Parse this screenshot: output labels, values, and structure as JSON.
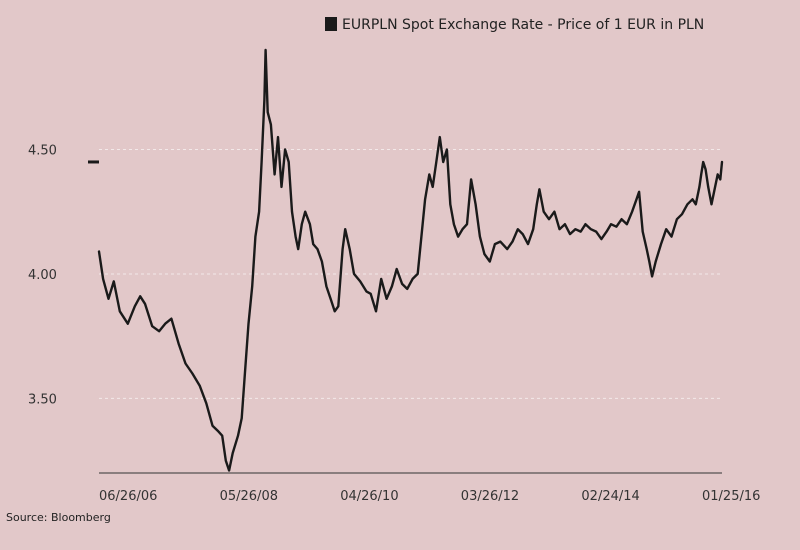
{
  "chart_data": {
    "type": "line",
    "title": "",
    "legend": {
      "label": "EURPLN Spot Exchange Rate - Price of 1 EUR in PLN",
      "placement": "top-right",
      "color": "#1a1a1a"
    },
    "source": "Source: Bloomberg",
    "xlabel": "",
    "ylabel": "",
    "grid": "horizontal dashed",
    "xlim": [
      "2006-06-26",
      "2016-05-20"
    ],
    "ylim": [
      3.2,
      4.9
    ],
    "x_tick_labels": [
      "06/26/06",
      "05/26/08",
      "04/26/10",
      "03/26/12",
      "02/24/14",
      "01/25/16"
    ],
    "x_tick_dates": [
      "2006-06-26",
      "2008-05-26",
      "2010-04-26",
      "2012-03-26",
      "2014-02-24",
      "2016-01-25"
    ],
    "y_ticks": [
      3.5,
      4.0,
      4.5
    ],
    "y_tick_labels": [
      "3.50",
      "4.00",
      "4.50"
    ],
    "last_value": 4.45,
    "series": [
      {
        "name": "EURPLN Spot Exchange Rate - Price of 1 EUR in PLN",
        "color": "#1a1a1a",
        "points": [
          [
            "2006-06-26",
            4.09
          ],
          [
            "2006-07-20",
            3.98
          ],
          [
            "2006-08-20",
            3.9
          ],
          [
            "2006-09-20",
            3.97
          ],
          [
            "2006-10-25",
            3.85
          ],
          [
            "2006-12-10",
            3.8
          ],
          [
            "2007-01-20",
            3.87
          ],
          [
            "2007-02-20",
            3.91
          ],
          [
            "2007-03-20",
            3.88
          ],
          [
            "2007-05-01",
            3.79
          ],
          [
            "2007-06-10",
            3.77
          ],
          [
            "2007-07-15",
            3.8
          ],
          [
            "2007-08-20",
            3.82
          ],
          [
            "2007-10-01",
            3.72
          ],
          [
            "2007-11-10",
            3.64
          ],
          [
            "2007-12-20",
            3.6
          ],
          [
            "2008-02-01",
            3.55
          ],
          [
            "2008-03-10",
            3.48
          ],
          [
            "2008-04-15",
            3.39
          ],
          [
            "2008-05-15",
            3.37
          ],
          [
            "2008-06-10",
            3.35
          ],
          [
            "2008-07-01",
            3.25
          ],
          [
            "2008-07-20",
            3.21
          ],
          [
            "2008-08-10",
            3.28
          ],
          [
            "2008-09-10",
            3.35
          ],
          [
            "2008-10-01",
            3.42
          ],
          [
            "2008-10-20",
            3.6
          ],
          [
            "2008-11-10",
            3.8
          ],
          [
            "2008-12-01",
            3.95
          ],
          [
            "2008-12-20",
            4.15
          ],
          [
            "2009-01-10",
            4.25
          ],
          [
            "2009-01-25",
            4.45
          ],
          [
            "2009-02-10",
            4.7
          ],
          [
            "2009-02-17",
            4.9
          ],
          [
            "2009-03-01",
            4.65
          ],
          [
            "2009-03-20",
            4.6
          ],
          [
            "2009-04-10",
            4.4
          ],
          [
            "2009-04-30",
            4.55
          ],
          [
            "2009-05-20",
            4.35
          ],
          [
            "2009-06-10",
            4.5
          ],
          [
            "2009-07-01",
            4.45
          ],
          [
            "2009-07-20",
            4.25
          ],
          [
            "2009-08-10",
            4.15
          ],
          [
            "2009-08-25",
            4.1
          ],
          [
            "2009-09-15",
            4.2
          ],
          [
            "2009-10-05",
            4.25
          ],
          [
            "2009-11-01",
            4.2
          ],
          [
            "2009-11-20",
            4.12
          ],
          [
            "2009-12-15",
            4.1
          ],
          [
            "2010-01-10",
            4.05
          ],
          [
            "2010-02-05",
            3.95
          ],
          [
            "2010-03-01",
            3.9
          ],
          [
            "2010-03-25",
            3.85
          ],
          [
            "2010-04-15",
            3.87
          ],
          [
            "2010-05-10",
            4.1
          ],
          [
            "2010-05-25",
            4.18
          ],
          [
            "2010-06-20",
            4.1
          ],
          [
            "2010-07-15",
            4.0
          ],
          [
            "2010-08-20",
            3.97
          ],
          [
            "2010-09-25",
            3.93
          ],
          [
            "2010-10-20",
            3.92
          ],
          [
            "2010-11-20",
            3.85
          ],
          [
            "2010-12-20",
            3.98
          ],
          [
            "2011-01-20",
            3.9
          ],
          [
            "2011-02-20",
            3.95
          ],
          [
            "2011-03-20",
            4.02
          ],
          [
            "2011-04-20",
            3.96
          ],
          [
            "2011-05-20",
            3.94
          ],
          [
            "2011-06-20",
            3.98
          ],
          [
            "2011-07-20",
            4.0
          ],
          [
            "2011-08-10",
            4.15
          ],
          [
            "2011-09-01",
            4.3
          ],
          [
            "2011-09-25",
            4.4
          ],
          [
            "2011-10-15",
            4.35
          ],
          [
            "2011-11-05",
            4.45
          ],
          [
            "2011-11-25",
            4.55
          ],
          [
            "2011-12-15",
            4.45
          ],
          [
            "2012-01-05",
            4.5
          ],
          [
            "2012-01-25",
            4.28
          ],
          [
            "2012-02-15",
            4.2
          ],
          [
            "2012-03-10",
            4.15
          ],
          [
            "2012-04-05",
            4.18
          ],
          [
            "2012-05-01",
            4.2
          ],
          [
            "2012-05-25",
            4.38
          ],
          [
            "2012-06-20",
            4.28
          ],
          [
            "2012-07-15",
            4.15
          ],
          [
            "2012-08-10",
            4.08
          ],
          [
            "2012-09-10",
            4.05
          ],
          [
            "2012-10-10",
            4.12
          ],
          [
            "2012-11-10",
            4.13
          ],
          [
            "2012-12-20",
            4.1
          ],
          [
            "2013-01-20",
            4.13
          ],
          [
            "2013-02-20",
            4.18
          ],
          [
            "2013-03-20",
            4.16
          ],
          [
            "2013-04-20",
            4.12
          ],
          [
            "2013-05-20",
            4.18
          ],
          [
            "2013-06-10",
            4.28
          ],
          [
            "2013-06-25",
            4.34
          ],
          [
            "2013-07-20",
            4.25
          ],
          [
            "2013-08-20",
            4.22
          ],
          [
            "2013-09-20",
            4.25
          ],
          [
            "2013-10-20",
            4.18
          ],
          [
            "2013-11-20",
            4.2
          ],
          [
            "2013-12-20",
            4.16
          ],
          [
            "2014-01-20",
            4.18
          ],
          [
            "2014-02-20",
            4.17
          ],
          [
            "2014-03-20",
            4.2
          ],
          [
            "2014-04-20",
            4.18
          ],
          [
            "2014-05-20",
            4.17
          ],
          [
            "2014-06-20",
            4.14
          ],
          [
            "2014-07-20",
            4.17
          ],
          [
            "2014-08-15",
            4.2
          ],
          [
            "2014-09-15",
            4.19
          ],
          [
            "2014-10-15",
            4.22
          ],
          [
            "2014-11-15",
            4.2
          ],
          [
            "2014-12-15",
            4.25
          ],
          [
            "2015-01-10",
            4.3
          ],
          [
            "2015-01-25",
            4.33
          ],
          [
            "2015-02-15",
            4.17
          ],
          [
            "2015-03-10",
            4.1
          ],
          [
            "2015-03-25",
            4.05
          ],
          [
            "2015-04-10",
            3.99
          ],
          [
            "2015-05-01",
            4.05
          ],
          [
            "2015-06-01",
            4.12
          ],
          [
            "2015-07-01",
            4.18
          ],
          [
            "2015-08-01",
            4.15
          ],
          [
            "2015-09-01",
            4.22
          ],
          [
            "2015-10-01",
            4.24
          ],
          [
            "2015-11-01",
            4.28
          ],
          [
            "2015-12-01",
            4.3
          ],
          [
            "2015-12-20",
            4.28
          ],
          [
            "2016-01-10",
            4.35
          ],
          [
            "2016-01-20",
            4.4
          ],
          [
            "2016-02-01",
            4.45
          ],
          [
            "2016-02-15",
            4.42
          ],
          [
            "2016-03-01",
            4.35
          ],
          [
            "2016-03-20",
            4.28
          ],
          [
            "2016-04-10",
            4.35
          ],
          [
            "2016-04-25",
            4.4
          ],
          [
            "2016-05-10",
            4.38
          ],
          [
            "2016-05-20",
            4.45
          ]
        ]
      }
    ]
  }
}
